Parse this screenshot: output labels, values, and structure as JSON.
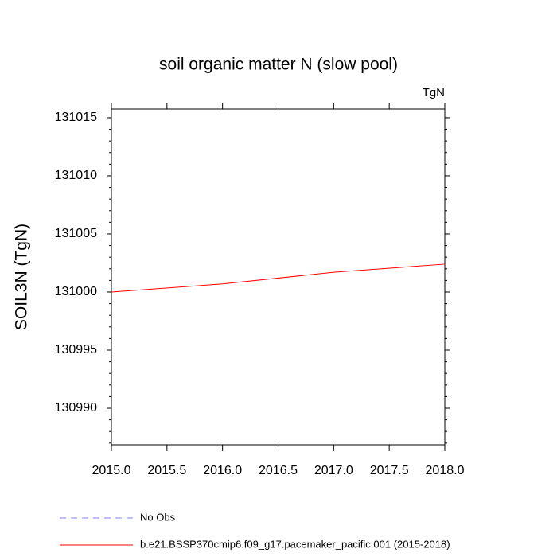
{
  "chart_data": {
    "type": "line",
    "title": "soil organic matter N (slow pool)",
    "units": "TgN",
    "y_label": "SOIL3N  (TgN)",
    "x": [
      2015,
      2016,
      2017,
      2018
    ],
    "series": [
      {
        "name": "No Obs",
        "color": "#8080ff",
        "dashed": true,
        "values": [
          null,
          null,
          null,
          null
        ]
      },
      {
        "name": "b.e21.BSSP370cmip6.f09_g17.pacemaker_pacific.001 (2015-2018)",
        "color": "#ff0000",
        "dashed": false,
        "values": [
          131000,
          131000.7,
          131001.7,
          131002.4
        ]
      }
    ],
    "xlim": [
      2015,
      2018
    ],
    "xticks": [
      {
        "value": 2015,
        "label": "2015.0"
      },
      2015.5,
      {
        "value": 2016,
        "label": "2016.0"
      },
      2016.5,
      {
        "value": 2017,
        "label": "2017.0"
      },
      2017.5,
      {
        "value": 2018,
        "label": "2018.0"
      }
    ],
    "ylim": [
      130986.85,
      131015.75
    ],
    "yticks": [
      130990,
      130995,
      131000,
      131005,
      131010,
      131015
    ],
    "grid": false
  }
}
